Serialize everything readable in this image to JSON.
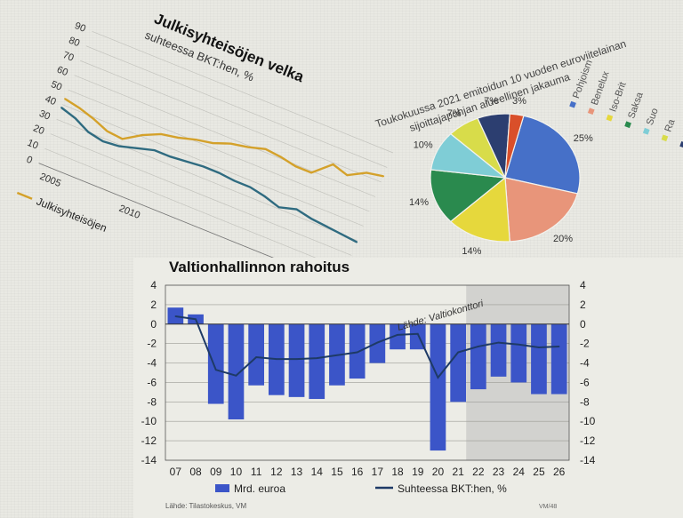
{
  "chart_data": [
    {
      "type": "line",
      "title": "Julkisyhteisöjen velka",
      "subtitle": "suhteessa BKT:hen, %",
      "x_ticks": [
        "2005",
        "2010"
      ],
      "y_ticks": [
        0,
        10,
        20,
        30,
        40,
        50,
        60,
        70,
        80,
        90
      ],
      "ylim": [
        0,
        90
      ],
      "x": [
        2004,
        2005,
        2006,
        2007,
        2008,
        2009,
        2010,
        2011,
        2012,
        2013,
        2014,
        2015,
        2016,
        2017,
        2018,
        2019,
        2020,
        2021,
        2022,
        2023
      ],
      "series": [
        {
          "name": "Julkisyhteisöjen",
          "color": "#d4a12a",
          "values": [
            44,
            42,
            39,
            35,
            34,
            41,
            46,
            48,
            51,
            53,
            57,
            59,
            62,
            61,
            59,
            59,
            69,
            66,
            72,
            74
          ]
        },
        {
          "name": "",
          "color": "#2f6b80",
          "values": [
            38,
            35,
            30,
            28,
            29,
            32,
            35,
            35,
            36,
            37,
            37,
            36,
            36,
            34,
            31,
            34,
            32,
            31,
            30,
            29
          ]
        }
      ],
      "legend_label": "Julkisyhteisöjen",
      "grid": true
    },
    {
      "type": "pie",
      "title": "Toukokuussa 2021 emitoidun 10 vuoden euroviitelainan",
      "subtitle": "sijoittajapohjan alueellinen jakauma",
      "slices": [
        {
          "label": "Pohjoism",
          "value": 25,
          "color": "#4670c8"
        },
        {
          "label": "Beneluх",
          "value": 20,
          "color": "#e8957a"
        },
        {
          "label": "Iso-Brit",
          "value": 14,
          "color": "#e6d83c"
        },
        {
          "label": "Saksa",
          "value": 14,
          "color": "#2a8a4e"
        },
        {
          "label": "Suo",
          "value": 10,
          "color": "#7fcdd6"
        },
        {
          "label": "Ra",
          "value": 7,
          "color": "#d8dc4a"
        },
        {
          "label": "N",
          "value": 7,
          "color": "#2c3e70"
        },
        {
          "label": "",
          "value": 3,
          "color": "#d94f2a"
        }
      ],
      "slice_labels": [
        "25%",
        "20%",
        "14%",
        "14%",
        "10%",
        "7%",
        "7%",
        "3%"
      ]
    },
    {
      "type": "bar",
      "title": "Valtionhallinnon rahoitus",
      "categories": [
        "07",
        "08",
        "09",
        "10",
        "11",
        "12",
        "13",
        "14",
        "15",
        "16",
        "17",
        "18",
        "19",
        "20",
        "21",
        "22",
        "23",
        "24",
        "25",
        "26"
      ],
      "bar_series": {
        "name": "Mrd. euroa",
        "color": "#3b55c8",
        "values": [
          1.7,
          1.0,
          -8.2,
          -9.8,
          -6.3,
          -7.3,
          -7.5,
          -7.7,
          -6.3,
          -5.6,
          -4.0,
          -2.6,
          -2.6,
          -13.0,
          -8.0,
          -6.7,
          -5.4,
          -6.0,
          -7.2,
          -7.2
        ]
      },
      "line_series": {
        "name": "Suhteessa BKT:hen, %",
        "color": "#1e3a66",
        "values": [
          0.8,
          0.5,
          -4.7,
          -5.3,
          -3.4,
          -3.6,
          -3.6,
          -3.5,
          -3.2,
          -2.9,
          -1.9,
          -1.1,
          -1.0,
          -5.5,
          -2.9,
          -2.3,
          -1.9,
          -2.1,
          -2.4,
          -2.3
        ]
      },
      "ylim": [
        -14,
        4
      ],
      "y_ticks": [
        4,
        2,
        0,
        -2,
        -4,
        -6,
        -8,
        -10,
        -12,
        -14
      ],
      "forecast_from": "22",
      "source": "Lähde: Tilastokeskus, VM",
      "inline_label": "Lähde: Valtiokonttori",
      "corner_code": "VM/48",
      "grid": true
    }
  ]
}
